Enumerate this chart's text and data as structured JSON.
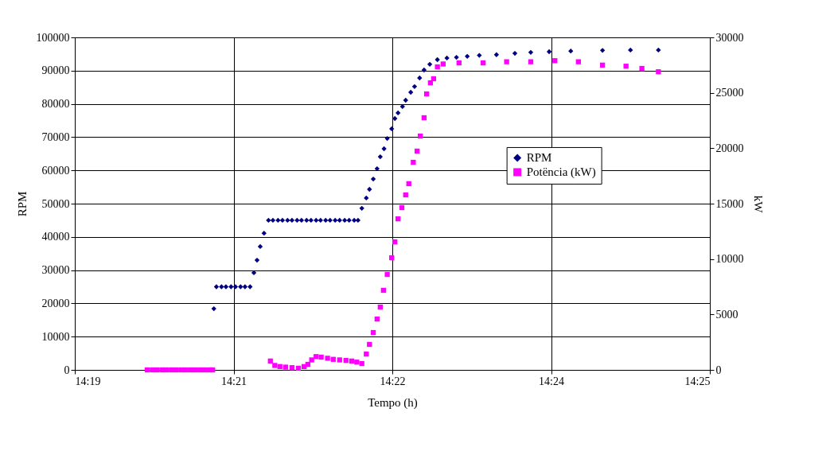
{
  "chart_data": {
    "type": "scatter",
    "xlabel": "Tempo (h)",
    "ylabel": "RPM",
    "y2label": "kW",
    "xlim": [
      14.325,
      14.425
    ],
    "xticks": [
      {
        "value": 14.325,
        "label": "14:19"
      },
      {
        "value": 14.35,
        "label": "14:21"
      },
      {
        "value": 14.375,
        "label": "14:22"
      },
      {
        "value": 14.4,
        "label": "14:24"
      },
      {
        "value": 14.425,
        "label": "14:25"
      }
    ],
    "ylim": [
      0,
      100000
    ],
    "yticks": [
      0,
      10000,
      20000,
      30000,
      40000,
      50000,
      60000,
      70000,
      80000,
      90000,
      100000
    ],
    "y2lim": [
      0,
      30000
    ],
    "y2ticks": [
      0,
      5000,
      10000,
      15000,
      20000,
      25000,
      30000
    ],
    "grid": true,
    "legend": "right",
    "series": [
      {
        "name": "RPM",
        "color": "#000080",
        "marker": "diamond",
        "x": [
          14.3469,
          14.3473,
          14.3481,
          14.3488,
          14.3496,
          14.3503,
          14.3511,
          14.3518,
          14.3526,
          14.3532,
          14.3537,
          14.3542,
          14.3548,
          14.3555,
          14.3562,
          14.357,
          14.3577,
          14.3585,
          14.3592,
          14.36,
          14.3607,
          14.3615,
          14.3622,
          14.363,
          14.3637,
          14.3645,
          14.3652,
          14.366,
          14.3667,
          14.3675,
          14.3682,
          14.369,
          14.3696,
          14.3702,
          14.3709,
          14.3714,
          14.372,
          14.3726,
          14.3731,
          14.3737,
          14.3742,
          14.3749,
          14.3754,
          14.3759,
          14.3766,
          14.3771,
          14.3779,
          14.3785,
          14.3793,
          14.38,
          14.3809,
          14.3821,
          14.3836,
          14.3851,
          14.3868,
          14.3887,
          14.3914,
          14.3943,
          14.3968,
          14.3997,
          14.4031,
          14.4081,
          14.4125,
          14.4169
        ],
        "values": [
          18400,
          25000,
          25000,
          25000,
          25000,
          25000,
          25000,
          25000,
          25000,
          29200,
          33000,
          37100,
          41100,
          45000,
          45000,
          45000,
          45000,
          45000,
          45000,
          45000,
          45000,
          45000,
          45000,
          45000,
          45000,
          45000,
          45000,
          45000,
          45000,
          45000,
          45000,
          45000,
          45000,
          48600,
          51700,
          54300,
          57400,
          60500,
          64100,
          66500,
          69600,
          72500,
          75600,
          77300,
          79200,
          81100,
          83500,
          85200,
          87800,
          90200,
          91900,
          93300,
          93800,
          94000,
          94300,
          94600,
          94800,
          95200,
          95500,
          95700,
          95900,
          96100,
          96200,
          96200
        ]
      },
      {
        "name": "Potëncia (kW)",
        "color": "#ff00ff",
        "marker": "square",
        "axis": "y2",
        "x": [
          14.3364,
          14.3372,
          14.3379,
          14.3387,
          14.3394,
          14.3402,
          14.3409,
          14.3417,
          14.3424,
          14.3432,
          14.3439,
          14.3447,
          14.3454,
          14.3462,
          14.3467,
          14.3558,
          14.3565,
          14.3573,
          14.3582,
          14.3592,
          14.3602,
          14.3611,
          14.3617,
          14.3623,
          14.363,
          14.3638,
          14.3648,
          14.3657,
          14.3667,
          14.3677,
          14.3686,
          14.3694,
          14.3702,
          14.3709,
          14.3714,
          14.372,
          14.3726,
          14.3731,
          14.3736,
          14.3742,
          14.3749,
          14.3754,
          14.3759,
          14.3765,
          14.3771,
          14.3776,
          14.3783,
          14.3789,
          14.3794,
          14.38,
          14.3804,
          14.381,
          14.3815,
          14.3821,
          14.383,
          14.3855,
          14.3893,
          14.393,
          14.3968,
          14.4006,
          14.4043,
          14.4081,
          14.4118,
          14.4143,
          14.4169
        ],
        "values": [
          0,
          0,
          0,
          0,
          0,
          0,
          0,
          0,
          0,
          0,
          0,
          0,
          0,
          0,
          0,
          800,
          400,
          300,
          250,
          200,
          150,
          300,
          500,
          900,
          1200,
          1150,
          1050,
          950,
          900,
          850,
          800,
          700,
          570,
          1430,
          2300,
          3370,
          4590,
          5670,
          7180,
          8610,
          10120,
          11550,
          13630,
          14640,
          15790,
          16800,
          18730,
          19740,
          21100,
          22750,
          24900,
          25900,
          26270,
          27340,
          27600,
          27700,
          27700,
          27800,
          27800,
          27900,
          27800,
          27500,
          27400,
          27200,
          26900
        ]
      }
    ]
  }
}
